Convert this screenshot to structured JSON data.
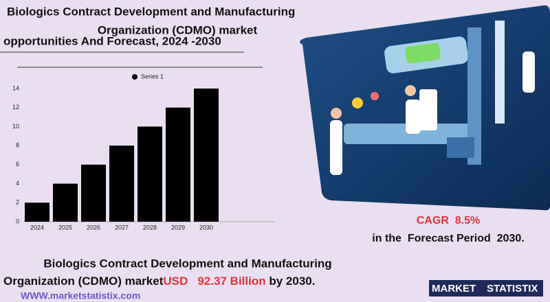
{
  "header": {
    "title_lines": [
      "Biologics Contract Development and Manufacturing",
      "Organization (CDMO) market",
      "opportunities And Forecast, 2024 -2030"
    ]
  },
  "chart_data": {
    "type": "bar",
    "categories": [
      "2024",
      "2025",
      "2026",
      "2027",
      "2028",
      "2029",
      "2030"
    ],
    "series": [
      {
        "name": "Series 1",
        "color": "#000000",
        "values": [
          2,
          4,
          6,
          8,
          10,
          12,
          14
        ]
      }
    ],
    "ylim": [
      0,
      14
    ],
    "yticks": [
      0,
      2,
      4,
      6,
      8,
      10,
      12,
      14
    ],
    "grid": false,
    "legend": "top"
  },
  "cagr": {
    "label": "CAGR  8.5%",
    "period": "in the  Forecast Period  2030."
  },
  "footer": {
    "line1": "Biologics Contract Development and Manufacturing",
    "line2": "Organization (CDMO) market",
    "value": "USD   92.37 Billion",
    "suffix": " by 2030.",
    "website": "WWW.marketstatistix.com",
    "logo": [
      "MARKET",
      "STATISTIX"
    ]
  }
}
